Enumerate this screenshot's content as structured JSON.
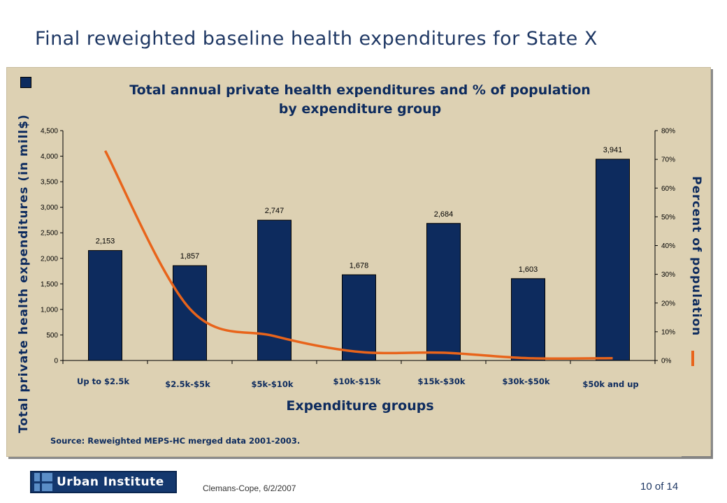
{
  "slide": {
    "title": "Final reweighted baseline health expenditures for State X",
    "author_date": "Clemans-Cope, 6/2/2007",
    "page": "10 of 14",
    "logo_text": "Urban Institute"
  },
  "colors": {
    "bar": "#0d2b5e",
    "line": "#e8641b",
    "panel": "#ddd1b3",
    "title_text": "#0d2b5e"
  },
  "chart_data": {
    "type": "bar",
    "title": "Total annual private health expenditures and % of population by expenditure group",
    "title_lines": [
      "Total annual private health expenditures and % of population",
      "by expenditure group"
    ],
    "xlabel": "Expenditure groups",
    "ylabel": "Total private health expenditures (in mill$)",
    "y2label": "Percent of population",
    "categories": [
      "Up to $2.5k",
      "$2.5k-$5k",
      "$5k-$10k",
      "$10k-$15k",
      "$15k-$30k",
      "$30k-$50k",
      "$50k and up"
    ],
    "series": [
      {
        "values": [
          2153,
          1857,
          2747,
          1678,
          2684,
          1603,
          3941
        ],
        "labels": [
          "2,153",
          "1,857",
          "2,747",
          "1,678",
          "2,684",
          "1,603",
          "3,941"
        ],
        "axis": "left",
        "style": "bar"
      },
      {
        "values": [
          73,
          18,
          8.5,
          3,
          2.7,
          0.8,
          0.8
        ],
        "axis": "right",
        "style": "line"
      }
    ],
    "ylim": [
      0,
      4500
    ],
    "y_ticks": [
      "0",
      "500",
      "1,000",
      "1,500",
      "2,000",
      "2,500",
      "3,000",
      "3,500",
      "4,000",
      "4,500"
    ],
    "y2lim": [
      0,
      80
    ],
    "y2_ticks": [
      "0%",
      "10%",
      "20%",
      "30%",
      "40%",
      "50%",
      "60%",
      "70%",
      "80%"
    ],
    "grid": false,
    "source": "Source: Reweighted MEPS-HC merged data 2001-2003."
  }
}
